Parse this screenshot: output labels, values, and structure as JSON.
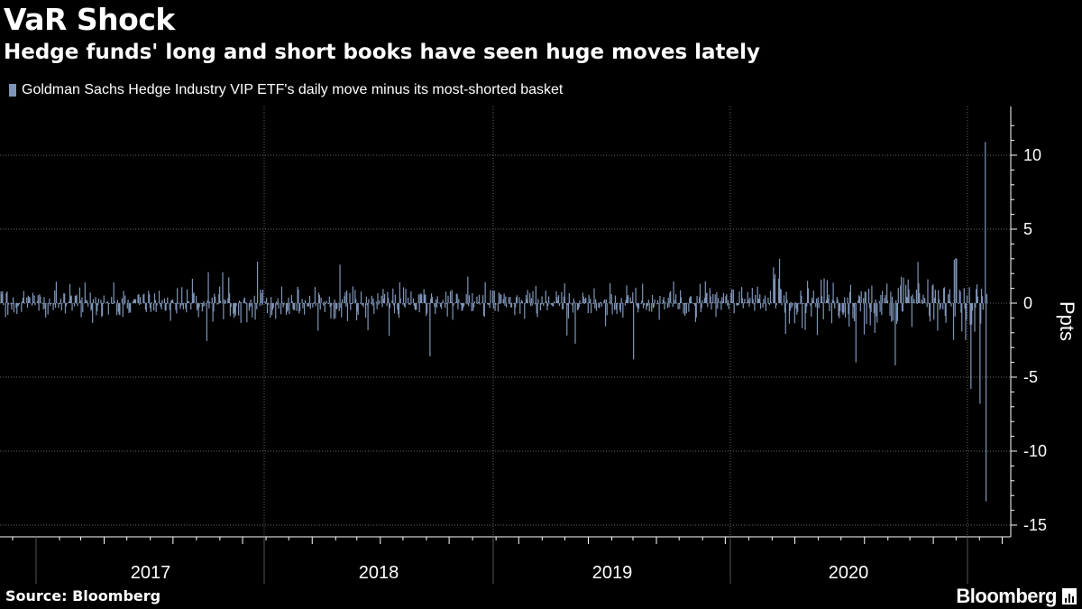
{
  "header": {
    "title": "VaR Shock",
    "subtitle": "Hedge funds' long and short books have seen huge moves lately"
  },
  "legend": {
    "label": "Goldman Sachs Hedge Industry VIP ETF's daily move minus its most-shorted basket",
    "color": "#7f95b8"
  },
  "footer": {
    "source": "Source: Bloomberg",
    "brand": "Bloomberg",
    "brand_icon": "bar-chart-icon"
  },
  "colors": {
    "background": "#000000",
    "bar": "#7f95b8",
    "grid": "#666666",
    "axis": "#ffffff"
  },
  "chart_data": {
    "type": "bar",
    "title": "VaR Shock",
    "subtitle": "Hedge funds' long and short books have seen huge moves lately",
    "ylabel": "Ppts",
    "xlabel": "",
    "ylim": [
      -15,
      13
    ],
    "yticks": [
      10,
      5,
      0,
      -5,
      -10,
      -15
    ],
    "ytick_labels": [
      "10",
      "5",
      "0",
      "-5",
      "-10",
      "-15"
    ],
    "xlim": [
      "2016-09-01",
      "2020-06-30"
    ],
    "x_tick_labels": [
      "2017",
      "2018",
      "2019",
      "2020"
    ],
    "grid": "dotted vertical at year boundaries and horizontal at y-ticks",
    "legend_position": "top-left",
    "series": [
      {
        "name": "Goldman Sachs Hedge Industry VIP ETF's daily move minus its most-shorted basket",
        "frequency": "daily",
        "description": "Daily spread; mostly within about ±2 ppts 2016-2019, wider swings in 2019-2020",
        "notable_points": [
          {
            "date": "2016-09-20",
            "value": -2.2
          },
          {
            "date": "2017-10-20",
            "value": 2.8
          },
          {
            "date": "2018-02-06",
            "value": 2.6
          },
          {
            "date": "2018-05-20",
            "value": 4.2
          },
          {
            "date": "2018-06-05",
            "value": -3.6
          },
          {
            "date": "2019-03-01",
            "value": -3.8
          },
          {
            "date": "2019-09-10",
            "value": 3.0
          },
          {
            "date": "2019-12-20",
            "value": -4.0
          },
          {
            "date": "2020-02-10",
            "value": -4.2
          },
          {
            "date": "2020-05-01",
            "value": 3.0
          },
          {
            "date": "2020-05-20",
            "value": -5.8
          },
          {
            "date": "2020-06-01",
            "value": -6.8
          },
          {
            "date": "2020-06-08",
            "value": 10.9
          },
          {
            "date": "2020-06-09",
            "value": -13.4
          }
        ]
      }
    ]
  }
}
